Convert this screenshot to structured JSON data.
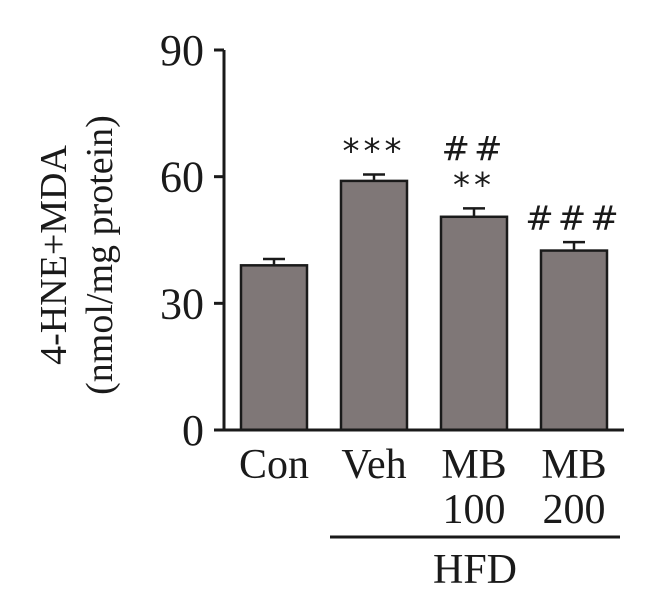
{
  "chart_data": {
    "type": "bar",
    "title": "",
    "categories": [
      {
        "line1": "Con",
        "line2": ""
      },
      {
        "line1": "Veh",
        "line2": ""
      },
      {
        "line1": "MB",
        "line2": "100"
      },
      {
        "line1": "MB",
        "line2": "200"
      }
    ],
    "values": [
      39,
      59,
      50.5,
      42.5
    ],
    "errors": [
      1.5,
      1.5,
      2.0,
      2.0
    ],
    "significance": [
      [],
      [
        "***"
      ],
      [
        "##",
        "**"
      ],
      [
        "###"
      ]
    ],
    "ylabel_line1": "4-HNE+MDA",
    "ylabel_line2": "(nmol/mg protein)",
    "xlabel": "",
    "ylim": [
      0,
      90
    ],
    "yticks": [
      0,
      30,
      60,
      90
    ],
    "group_label": "HFD",
    "group_span": [
      1,
      3
    ],
    "bar_color": "#7f7777",
    "grid": false,
    "legend": "none"
  }
}
